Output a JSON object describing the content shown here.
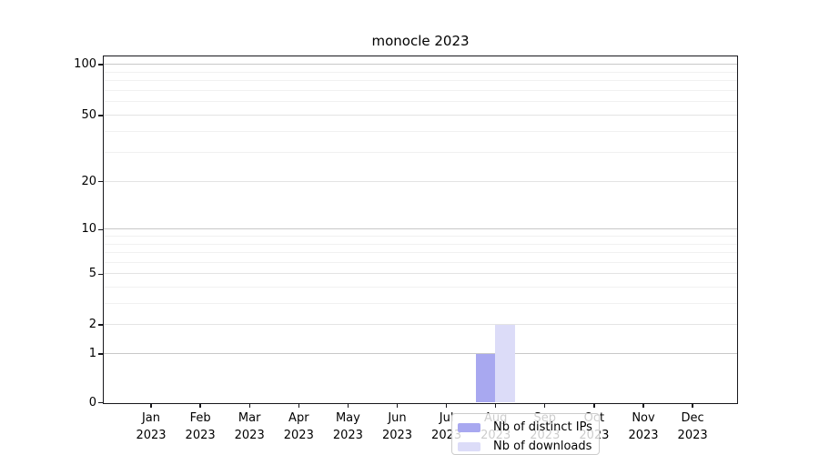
{
  "figure": {
    "background": "#ffffff"
  },
  "chart_data": {
    "type": "bar",
    "title": "monocle 2023",
    "categories": [
      "Jan",
      "Feb",
      "Mar",
      "Apr",
      "May",
      "Jun",
      "Jul",
      "Aug",
      "Sep",
      "Oct",
      "Nov",
      "Dec"
    ],
    "year_label": "2023",
    "series": [
      {
        "name": "Nb of distinct IPs",
        "color": "#a8a8f0",
        "values": [
          0,
          0,
          0,
          0,
          0,
          0,
          0,
          1,
          0,
          0,
          0,
          0
        ]
      },
      {
        "name": "Nb of downloads",
        "color": "#dcdcf8",
        "values": [
          0,
          0,
          0,
          0,
          0,
          0,
          0,
          2,
          0,
          0,
          0,
          0
        ]
      }
    ],
    "y_axis": {
      "major_ticks": [
        0,
        1,
        2,
        5,
        10,
        20,
        50,
        100
      ],
      "minor_ticks": [
        3,
        4,
        6,
        7,
        8,
        9,
        30,
        40,
        60,
        70,
        80,
        90
      ],
      "scale": "log-like",
      "range": [
        0,
        111
      ]
    },
    "x_axis": {
      "tick_count": 12
    },
    "legend": {
      "position": "lower center inside plot"
    },
    "grid": {
      "decade_line_color": "#c8c8c8",
      "major_line_color": "#e4e4e4",
      "minor_line_color": "#f1f1f1"
    },
    "colors": {
      "spine": "#17171c",
      "text": "#000000"
    }
  }
}
